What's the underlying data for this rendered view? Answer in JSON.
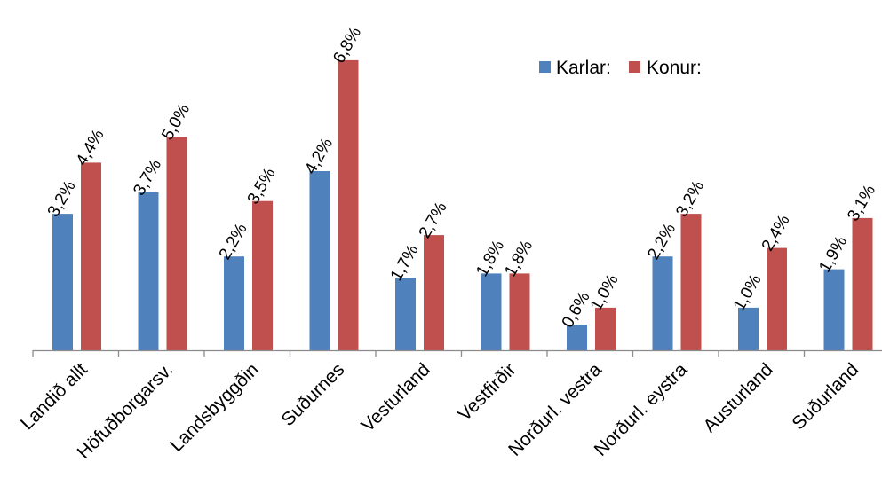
{
  "chart_data": {
    "type": "bar",
    "categories": [
      "Landið allt",
      "Höfuðborgarsv.",
      "Landsbyggðin",
      "Suðurnes",
      "Vesturland",
      "Vestfirðir",
      "Norðurl. vestra",
      "Norðurl. eystra",
      "Austurland",
      "Suðurland"
    ],
    "series": [
      {
        "name": "Karlar:",
        "color": "#4F81BD",
        "values": [
          3.2,
          3.7,
          2.2,
          4.2,
          1.7,
          1.8,
          0.6,
          2.2,
          1.0,
          1.9
        ],
        "labels": [
          "3,2%",
          "3,7%",
          "2,2%",
          "4,2%",
          "1,7%",
          "1,8%",
          "0,6%",
          "2,2%",
          "1,0%",
          "1,9%"
        ]
      },
      {
        "name": "Konur:",
        "color": "#C0504D",
        "values": [
          4.4,
          5.0,
          3.5,
          6.8,
          2.7,
          1.8,
          1.0,
          3.2,
          2.4,
          3.1
        ],
        "labels": [
          "4,4%",
          "5,0%",
          "3,5%",
          "6,8%",
          "2,7%",
          "1,8%",
          "1,0%",
          "3,2%",
          "2,4%",
          "3,1%"
        ]
      }
    ],
    "ylim": [
      0,
      7
    ],
    "grid": false,
    "legend_position": "top-right"
  }
}
